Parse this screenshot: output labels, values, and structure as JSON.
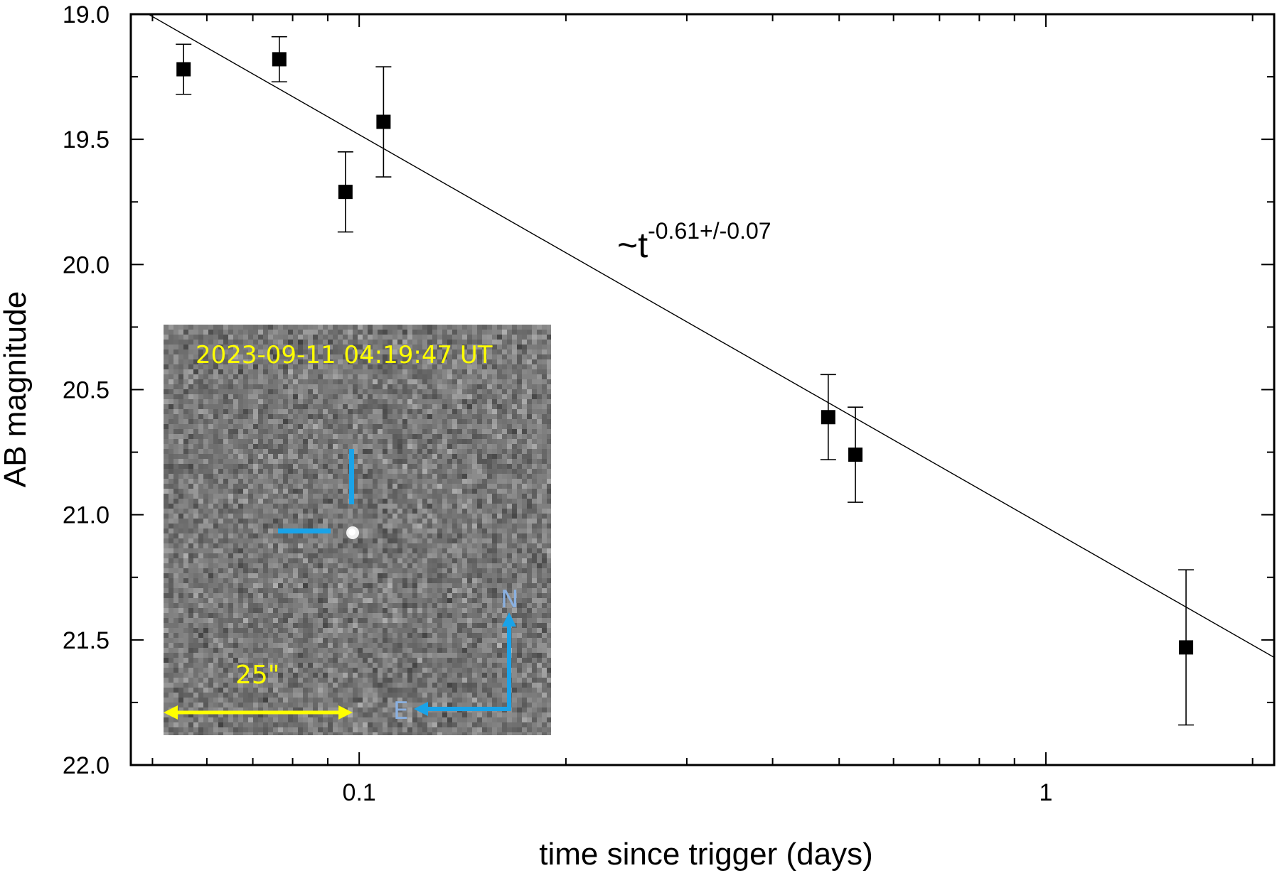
{
  "chart_data": {
    "type": "scatter",
    "title": "",
    "xlabel": "time since trigger (days)",
    "ylabel": "AB magnitude",
    "xscale": "log",
    "xlim": [
      0.0465,
      2.15
    ],
    "ylim": [
      22.0,
      19.0
    ],
    "y_inverted": true,
    "grid": false,
    "xticks": [
      {
        "value": 0.1,
        "label": "0.1"
      },
      {
        "value": 1,
        "label": "1"
      }
    ],
    "yticks": [
      {
        "value": 19.0,
        "label": "19.0"
      },
      {
        "value": 19.5,
        "label": "19.5"
      },
      {
        "value": 20.0,
        "label": "20.0"
      },
      {
        "value": 20.5,
        "label": "20.5"
      },
      {
        "value": 21.0,
        "label": "21.0"
      },
      {
        "value": 21.5,
        "label": "21.5"
      },
      {
        "value": 22.0,
        "label": "22.0"
      }
    ],
    "series": [
      {
        "marker": "square",
        "color": "#000000",
        "points": [
          {
            "x": 0.0555,
            "y": 19.22,
            "yerr": 0.1
          },
          {
            "x": 0.0765,
            "y": 19.18,
            "yerr": 0.09
          },
          {
            "x": 0.0955,
            "y": 19.71,
            "yerr": 0.16
          },
          {
            "x": 0.1085,
            "y": 19.43,
            "yerr": 0.22
          },
          {
            "x": 0.482,
            "y": 20.61,
            "yerr": 0.17
          },
          {
            "x": 0.528,
            "y": 20.76,
            "yerr": 0.19
          },
          {
            "x": 1.6,
            "y": 21.53,
            "yerr": 0.31
          }
        ]
      }
    ],
    "fit_line": {
      "power_index": -0.61,
      "points": [
        {
          "x": 0.0465,
          "y": 18.96
        },
        {
          "x": 2.15,
          "y": 21.57
        }
      ]
    },
    "annotation": {
      "prefix": "~t",
      "exponent": "-0.61+/-0.07"
    },
    "inset": {
      "timestamp": "2023-09-11 04:19:47 UT",
      "scale_label": "25\"",
      "compass_n": "N",
      "compass_e": "E",
      "colors": {
        "timestamp": "#ffff00",
        "scale_bar": "#ffff00",
        "marker": "#1aa3e8",
        "compass_arrow": "#1aa3e8",
        "compass_letters": "#8ab0e0"
      }
    }
  }
}
